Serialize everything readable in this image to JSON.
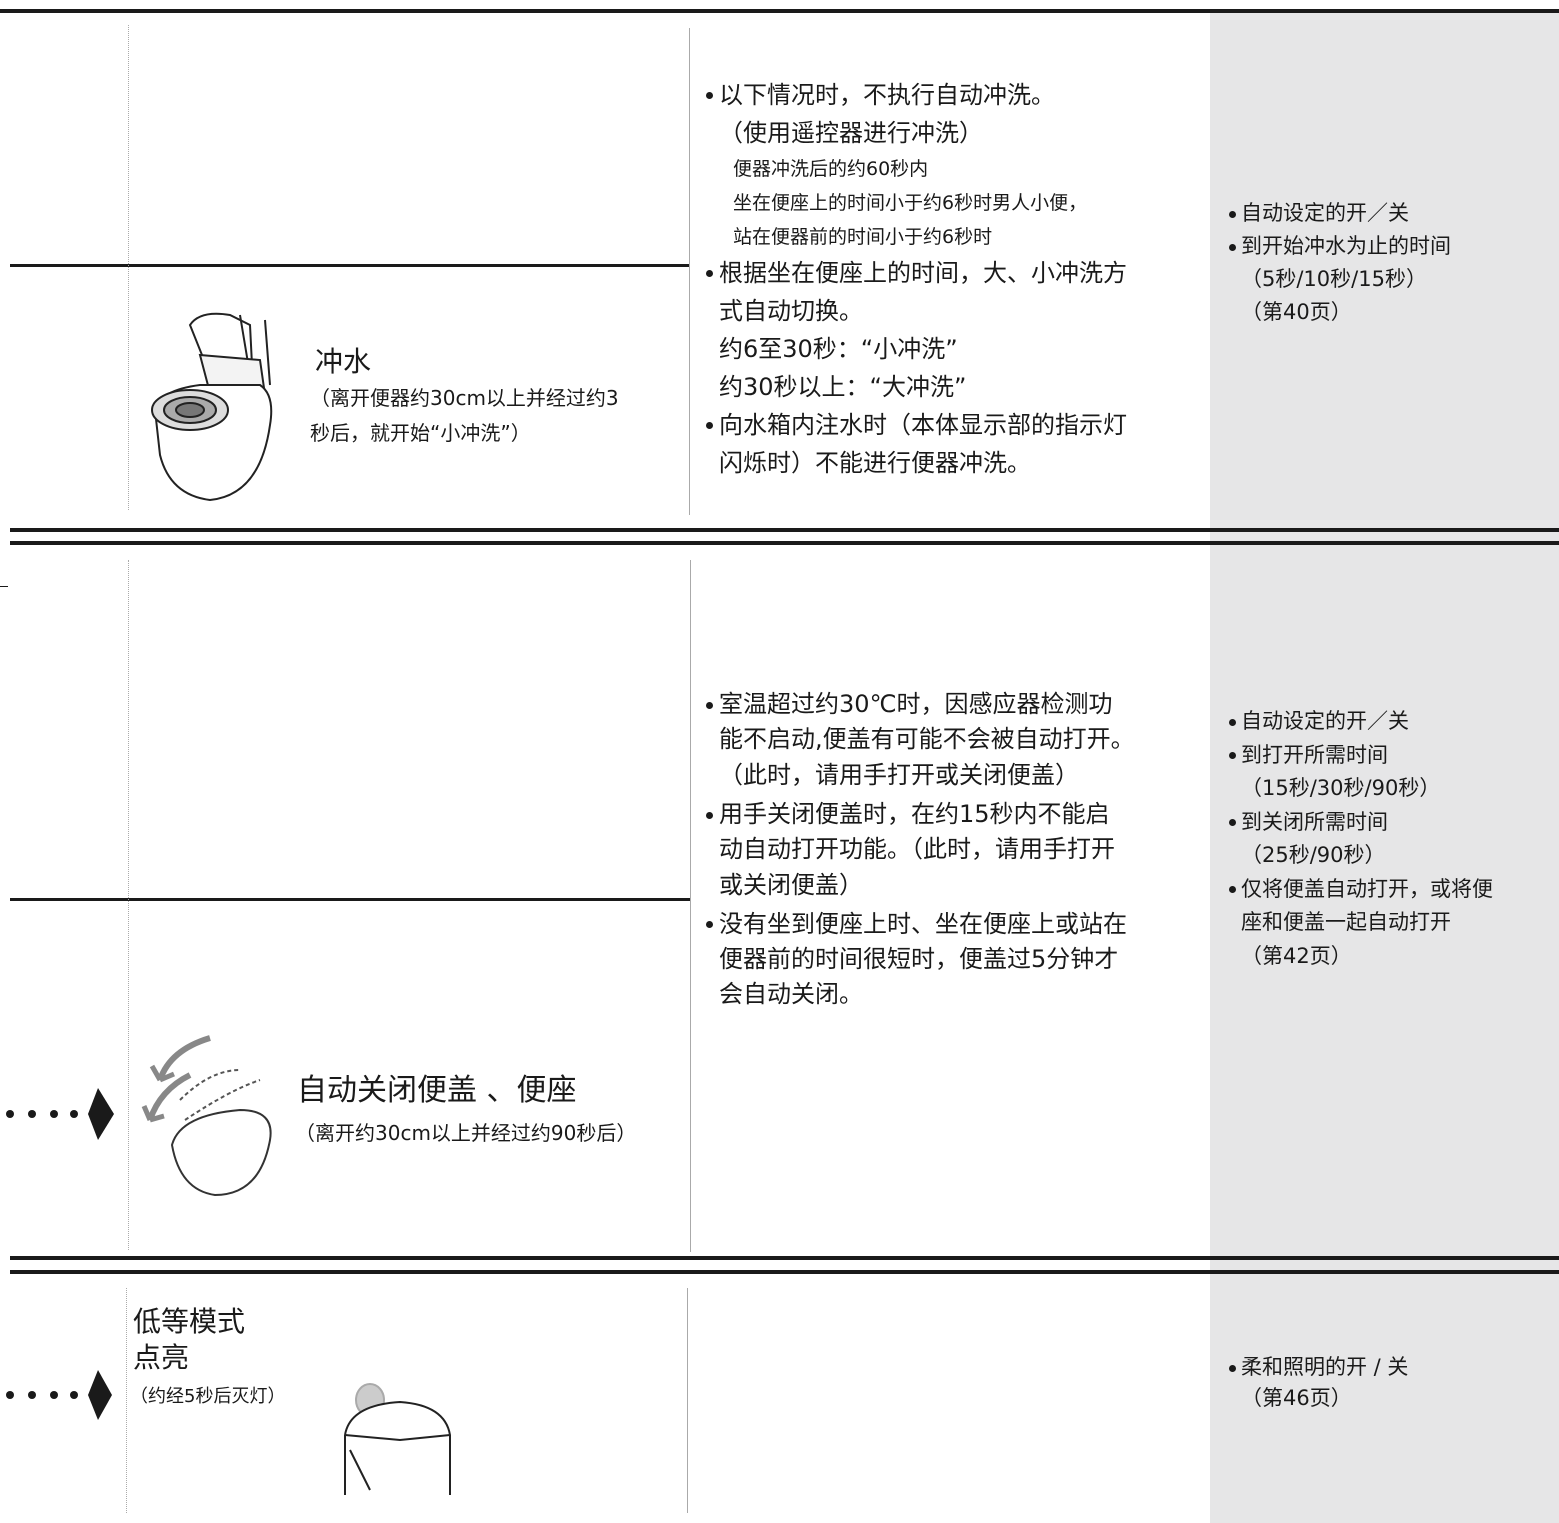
{
  "sections": [
    {
      "title": [
        "冲水"
      ],
      "caption": [
        "（离开便器约30cm以上并经过约3",
        "秒后，就开始“小冲洗”）"
      ],
      "notes": [
        {
          "lines": [
            "以下情况时，不执行自动冲洗。",
            "（使用遥控器进行冲洗）"
          ],
          "details": [
            "便器冲洗后的约60秒内",
            "坐在便座上的时间小于约6秒时男人小便，",
            "站在便器前的时间小于约6秒时"
          ]
        },
        {
          "lines": [
            "根据坐在便座上的时间，大、小冲洗方",
            "式自动切换。",
            "约6至30秒：“小冲洗”",
            "约30秒以上：“大冲洗”"
          ]
        },
        {
          "lines": [
            "向水箱内注水时（本体显示部的指示灯",
            "闪烁时）不能进行便器冲洗。"
          ]
        }
      ],
      "settings": [
        {
          "lines": [
            "自动设定的开／关"
          ]
        },
        {
          "lines": [
            "到开始冲水为止的时间",
            "（5秒/10秒/15秒）",
            "（第40页）"
          ]
        }
      ]
    },
    {
      "title": [
        "自动关闭便盖 、便座"
      ],
      "caption": [
        "（离开约30cm以上并经过约90秒后）"
      ],
      "notes": [
        {
          "lines": [
            "室温超过约30℃时，因感应器检测功",
            "能不启动,便盖有可能不会被自动打开。",
            "（此时，请用手打开或关闭便盖）"
          ]
        },
        {
          "lines": [
            "用手关闭便盖时，在约15秒内不能启",
            "动自动打开功能。（此时，请用手打开",
            "或关闭便盖）"
          ]
        },
        {
          "lines": [
            "没有坐到便座上时、坐在便座上或站在",
            "便器前的时间很短时，便盖过5分钟才",
            "会自动关闭。"
          ]
        }
      ],
      "settings": [
        {
          "lines": [
            "自动设定的开／关"
          ]
        },
        {
          "lines": [
            "到打开所需时间",
            "（15秒/30秒/90秒）"
          ]
        },
        {
          "lines": [
            "到关闭所需时间",
            "（25秒/90秒）"
          ]
        },
        {
          "lines": [
            "仅将便盖自动打开，或将便",
            "座和便盖一起自动打开",
            "（第42页）"
          ]
        }
      ]
    },
    {
      "title": [
        "低等模式",
        "点亮"
      ],
      "caption": [
        "（约经5秒后灭灯）"
      ],
      "notes": [],
      "settings": [
        {
          "lines": [
            "柔和照明的开 / 关",
            "（第46页）"
          ]
        }
      ]
    }
  ]
}
